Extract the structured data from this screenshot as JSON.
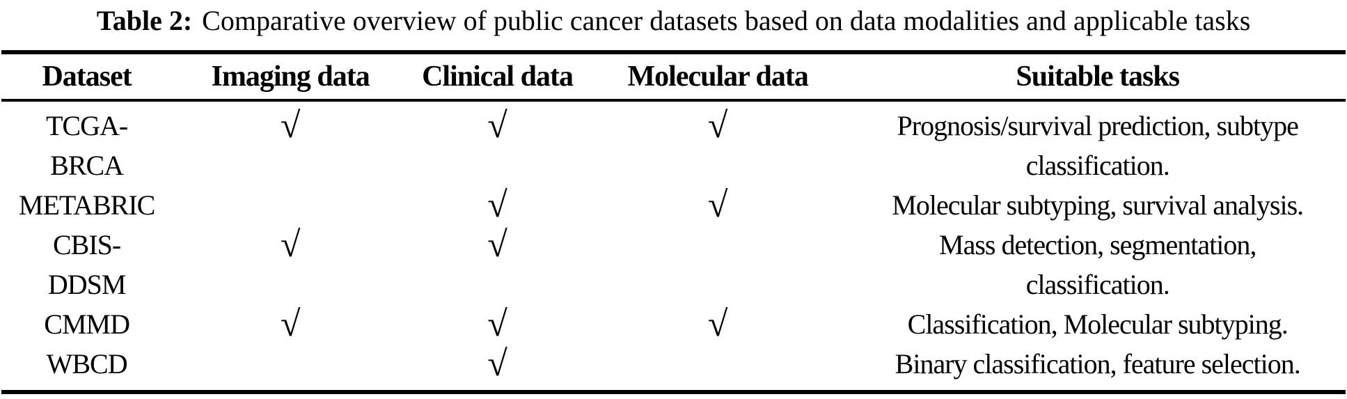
{
  "caption": {
    "label": "Table 2:",
    "text": "Comparative overview of public cancer datasets based on data modalities and applicable tasks"
  },
  "table": {
    "columns": {
      "dataset": "Dataset",
      "imaging": "Imaging data",
      "clinical": "Clinical data",
      "molecular": "Molecular data",
      "tasks": "Suitable tasks"
    },
    "check_symbol": "√",
    "rows": [
      {
        "dataset_lines": [
          "TCGA-",
          "BRCA"
        ],
        "imaging": "√",
        "clinical": "√",
        "molecular": "√",
        "tasks_lines": [
          "Prognosis/survival prediction, subtype",
          "classification."
        ]
      },
      {
        "dataset_lines": [
          "METABRIC"
        ],
        "imaging": "",
        "clinical": "√",
        "molecular": "√",
        "tasks_lines": [
          "Molecular subtyping, survival analysis."
        ]
      },
      {
        "dataset_lines": [
          "CBIS-",
          "DDSM"
        ],
        "imaging": "√",
        "clinical": "√",
        "molecular": "",
        "tasks_lines": [
          "Mass detection, segmentation,",
          "classification."
        ]
      },
      {
        "dataset_lines": [
          "CMMD"
        ],
        "imaging": "√",
        "clinical": "√",
        "molecular": "√",
        "tasks_lines": [
          "Classification, Molecular subtyping."
        ]
      },
      {
        "dataset_lines": [
          "WBCD"
        ],
        "imaging": "",
        "clinical": "√",
        "molecular": "",
        "tasks_lines": [
          "Binary classification, feature selection."
        ]
      }
    ]
  },
  "colors": {
    "text": "#000000",
    "background": "#ffffff",
    "rule": "#000000"
  }
}
